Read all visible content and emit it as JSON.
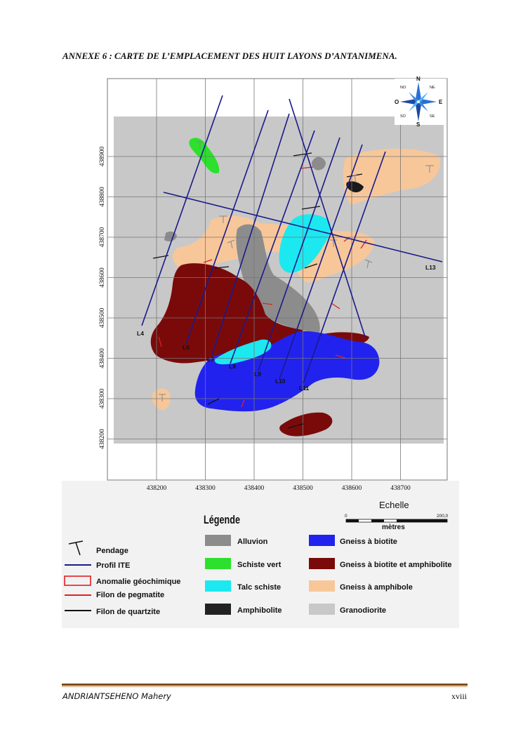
{
  "title": "ANNEXE 6 : CARTE DE L’EMPLACEMENT DES HUIT  LAYONS D’ANTANIMENA.",
  "map": {
    "x_ticks": [
      "438200",
      "438300",
      "438400",
      "438500",
      "438600",
      "438700"
    ],
    "y_ticks": [
      "438900",
      "438800",
      "438700",
      "438600",
      "438500",
      "438400",
      "438300",
      "438200"
    ],
    "line_labels": [
      "L4",
      "L6",
      "L7",
      "L8",
      "L9",
      "L10",
      "L11",
      "L13"
    ],
    "compass": {
      "n": "N",
      "s": "S",
      "e": "E",
      "o": "O",
      "no": "NO",
      "ne": "NE",
      "so": "SO",
      "se": "SE"
    },
    "scale": {
      "title": "Echelle",
      "start": "0",
      "end": "200,0",
      "unit": "mètres"
    }
  },
  "legend": {
    "title": "Légende",
    "symbols": [
      {
        "label": "Pendage",
        "kind": "pendage"
      },
      {
        "label": "Profil ITE",
        "kind": "line",
        "color": "#1a1a8c"
      },
      {
        "label": "Anomalie géochimique",
        "kind": "rect",
        "color": "#e02020"
      },
      {
        "label": "Filon de pegmatite",
        "kind": "line",
        "color": "#e02020"
      },
      {
        "label": "Filon de quartzite",
        "kind": "line",
        "color": "#111111"
      }
    ],
    "units_left": [
      {
        "label": "Alluvion",
        "color": "#8c8c8c"
      },
      {
        "label": "Schiste vert",
        "color": "#2de02d"
      },
      {
        "label": "Talc schiste",
        "color": "#1ce8f0"
      },
      {
        "label": "Amphibolite",
        "color": "#222222"
      }
    ],
    "units_right": [
      {
        "label": "Gneiss à biotite",
        "color": "#2222ee"
      },
      {
        "label": "Gneiss à biotite et amphibolite",
        "color": "#7a0a0a"
      },
      {
        "label": "Gneiss à amphibole",
        "color": "#f7c79a"
      },
      {
        "label": "Granodiorite",
        "color": "#c8c8c8"
      }
    ]
  },
  "footer": {
    "author": "ANDRIANTSEHENO Mahery",
    "page": "xviii"
  }
}
